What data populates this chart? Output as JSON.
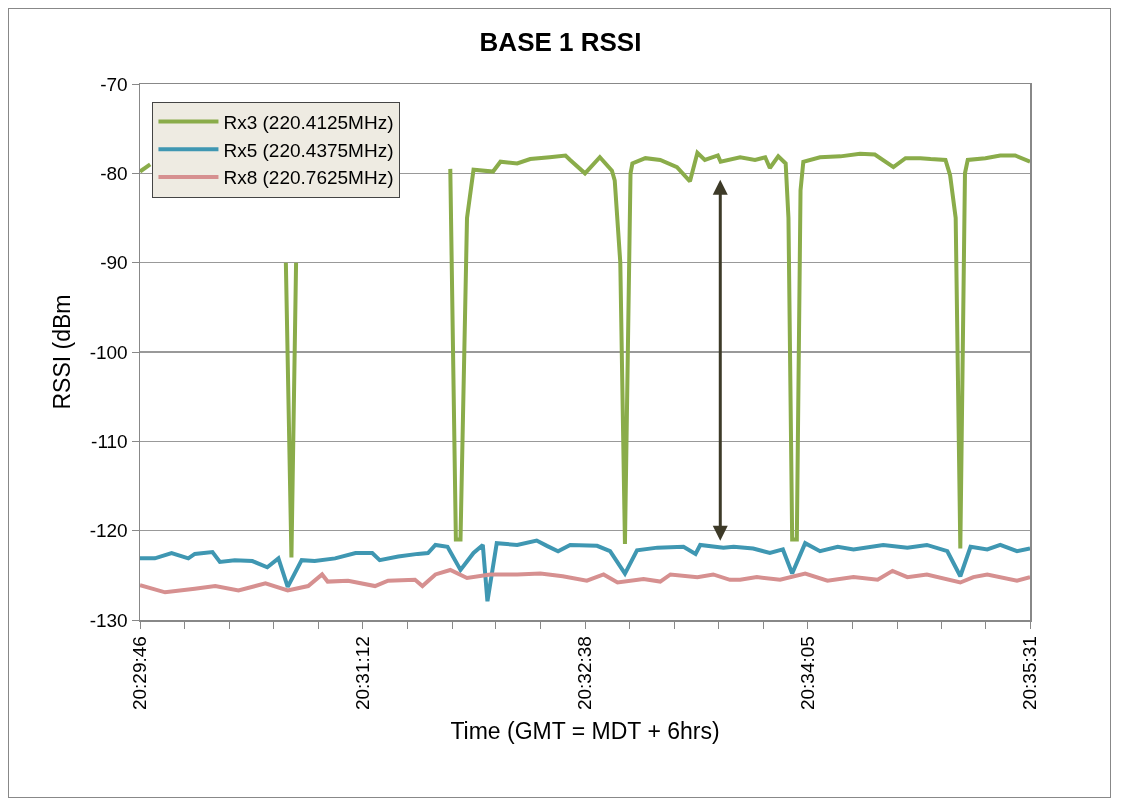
{
  "chart_data": {
    "type": "line",
    "title": "BASE 1 RSSI",
    "xlabel": "Time (GMT = MDT + 6hrs)",
    "ylabel": "RSSI (dBm",
    "xlim": [
      20.4961,
      20.5919
    ],
    "xticks": [
      {
        "value": 20.4961,
        "label": "20:29:46"
      },
      {
        "value": 20.5009,
        "label": null
      },
      {
        "value": 20.5057,
        "label": null
      },
      {
        "value": 20.5105,
        "label": null
      },
      {
        "value": 20.5153,
        "label": null
      },
      {
        "value": 20.5201,
        "label": "20:31:12"
      },
      {
        "value": 20.5249,
        "label": null
      },
      {
        "value": 20.5297,
        "label": null
      },
      {
        "value": 20.5344,
        "label": null
      },
      {
        "value": 20.5392,
        "label": null
      },
      {
        "value": 20.544,
        "label": "20:32:38"
      },
      {
        "value": 20.5488,
        "label": null
      },
      {
        "value": 20.5536,
        "label": null
      },
      {
        "value": 20.5584,
        "label": null
      },
      {
        "value": 20.5632,
        "label": null
      },
      {
        "value": 20.568,
        "label": "20:34:05"
      },
      {
        "value": 20.5728,
        "label": null
      },
      {
        "value": 20.5776,
        "label": null
      },
      {
        "value": 20.5824,
        "label": null
      },
      {
        "value": 20.5871,
        "label": null
      },
      {
        "value": 20.5919,
        "label": "20:35:31"
      }
    ],
    "ylim": [
      -130,
      -70
    ],
    "yticks": [
      -130,
      -120,
      -110,
      -100,
      -90,
      -80,
      -70
    ],
    "grid": "y",
    "legend": "top left",
    "series": [
      {
        "name": "Rx3 (220.4125MHz)",
        "color": "#8aac4a",
        "x": [
          20.4961,
          20.4972,
          20.5042,
          20.5118,
          20.5124,
          20.5129,
          20.5135,
          20.5273,
          20.5295,
          20.5301,
          20.5306,
          20.5313,
          20.532,
          20.5341,
          20.5349,
          20.5367,
          20.5381,
          20.5402,
          20.5419,
          20.5424,
          20.544,
          20.5456,
          20.5469,
          20.5472,
          20.5478,
          20.5483,
          20.5489,
          20.5491,
          20.5505,
          20.5521,
          20.5539,
          20.5553,
          20.5561,
          20.5569,
          20.5583,
          20.5586,
          20.5607,
          20.5623,
          20.5634,
          20.5639,
          20.5648,
          20.5656,
          20.5659,
          20.5663,
          20.5668,
          20.5672,
          20.5675,
          20.5693,
          20.5715,
          20.5736,
          20.5752,
          20.5772,
          20.5785,
          20.5801,
          20.5812,
          20.5828,
          20.5833,
          20.5839,
          20.5844,
          20.5849,
          20.5852,
          20.5871,
          20.5887,
          20.5903,
          20.5919
        ],
        "values": [
          -79.8,
          -79.0,
          null,
          -90,
          -123,
          -90,
          null,
          null,
          -79.5,
          -121,
          -121,
          -85,
          -79.6,
          -79.8,
          -78.7,
          -78.9,
          -78.4,
          -78.2,
          -78.0,
          -78.5,
          -80.0,
          -78.2,
          -79.7,
          -80.8,
          -90,
          -121.5,
          -80,
          -78.9,
          -78.3,
          -78.5,
          -79.3,
          -80.9,
          -77.7,
          -78.5,
          -78.0,
          -78.7,
          -78.2,
          -78.5,
          -78.2,
          -79.4,
          -78.1,
          -78.9,
          -85,
          -121,
          -121,
          -81.9,
          -78.7,
          -78.2,
          -78.1,
          -77.8,
          -77.9,
          -79.3,
          -78.3,
          -78.3,
          -78.4,
          -78.5,
          -80.2,
          -85,
          -122,
          -80,
          -78.5,
          -78.3,
          -78.0,
          -78.0,
          -78.7
        ]
      },
      {
        "name": "Rx5 (220.4375MHz)",
        "color": "#3f97b2",
        "x": [
          20.4961,
          20.4977,
          20.4995,
          20.5013,
          20.502,
          20.5039,
          20.5047,
          20.5063,
          20.5082,
          20.5098,
          20.511,
          20.512,
          20.5135,
          20.5149,
          20.5171,
          20.5193,
          20.5211,
          20.5219,
          20.5239,
          20.526,
          20.5271,
          20.5279,
          20.5292,
          20.5306,
          20.532,
          20.533,
          20.5335,
          20.5345,
          20.5367,
          20.5388,
          20.5399,
          20.5411,
          20.5424,
          20.5453,
          20.5467,
          20.5483,
          20.5496,
          20.5518,
          20.5546,
          20.5559,
          20.5564,
          20.5589,
          20.56,
          20.5621,
          20.5639,
          20.5653,
          20.5663,
          20.5677,
          20.5693,
          20.5712,
          20.5729,
          20.5761,
          20.5787,
          20.5808,
          20.583,
          20.5844,
          20.5855,
          20.5873,
          20.5887,
          20.5905,
          20.5919
        ],
        "values": [
          -123.1,
          -123.1,
          -122.5,
          -123.1,
          -122.6,
          -122.4,
          -123.5,
          -123.3,
          -123.4,
          -124.1,
          -123.1,
          -126.3,
          -123.3,
          -123.4,
          -123.1,
          -122.5,
          -122.5,
          -123.3,
          -122.9,
          -122.6,
          -122.5,
          -121.6,
          -121.8,
          -124.4,
          -122.5,
          -121.6,
          -127.9,
          -121.4,
          -121.6,
          -121.1,
          -121.7,
          -122.3,
          -121.6,
          -121.7,
          -122.3,
          -124.8,
          -122.2,
          -121.9,
          -121.8,
          -122.6,
          -121.6,
          -121.9,
          -121.8,
          -122.0,
          -122.5,
          -122.1,
          -124.8,
          -121.4,
          -122.3,
          -121.8,
          -122.1,
          -121.6,
          -121.9,
          -121.6,
          -122.3,
          -125.1,
          -121.8,
          -122.1,
          -121.6,
          -122.3,
          -122.0
        ]
      },
      {
        "name": "Rx8 (220.7625MHz)",
        "color": "#d69090",
        "x": [
          20.4961,
          20.4988,
          20.502,
          20.5042,
          20.5067,
          20.5096,
          20.512,
          20.5142,
          20.5157,
          20.5163,
          20.5185,
          20.5214,
          20.5228,
          20.5257,
          20.5265,
          20.5279,
          20.5295,
          20.5313,
          20.5338,
          20.5367,
          20.5392,
          20.5416,
          20.5442,
          20.546,
          20.5475,
          20.5503,
          20.5521,
          20.5532,
          20.5561,
          20.5578,
          20.5596,
          20.5607,
          20.5625,
          20.565,
          20.5677,
          20.5701,
          20.5729,
          20.5755,
          20.5771,
          20.5787,
          20.5808,
          20.5844,
          20.5858,
          20.5873,
          20.5905,
          20.5919
        ],
        "values": [
          -126.1,
          -126.9,
          -126.5,
          -126.2,
          -126.7,
          -125.9,
          -126.7,
          -126.2,
          -124.9,
          -125.7,
          -125.6,
          -126.2,
          -125.6,
          -125.5,
          -126.2,
          -124.9,
          -124.4,
          -125.3,
          -124.9,
          -124.9,
          -124.8,
          -125.1,
          -125.6,
          -124.9,
          -125.8,
          -125.4,
          -125.7,
          -124.9,
          -125.2,
          -124.9,
          -125.5,
          -125.5,
          -125.2,
          -125.5,
          -124.8,
          -125.6,
          -125.2,
          -125.5,
          -124.5,
          -125.2,
          -124.9,
          -125.8,
          -125.2,
          -124.9,
          -125.6,
          -125.2
        ]
      }
    ]
  }
}
